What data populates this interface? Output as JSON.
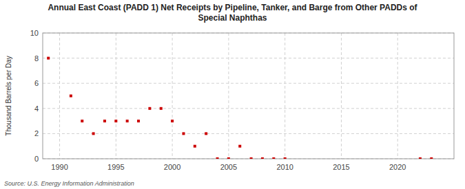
{
  "chart_data": {
    "type": "scatter",
    "title": "Annual East Coast (PADD 1) Net Receipts by Pipeline, Tanker, and Barge from Other PADDs of\nSpecial Naphthas",
    "y_label": "Thousand Barrels per Day",
    "annotations": [
      "Source: U.S. Energy Information Administration"
    ],
    "x": [
      1989,
      1991,
      1992,
      1993,
      1994,
      1995,
      1996,
      1997,
      1998,
      1999,
      2000,
      2001,
      2002,
      2003,
      2004,
      2005,
      2006,
      2007,
      2008,
      2009,
      2010,
      2022,
      2023
    ],
    "values": [
      8.0,
      5.0,
      3.0,
      2.0,
      3.0,
      3.0,
      3.0,
      3.0,
      4.0,
      4.0,
      3.0,
      2.0,
      1.0,
      2.0,
      0.0,
      0.0,
      1.0,
      0.0,
      0.0,
      0.0,
      0.0,
      0.0,
      0.0
    ],
    "color": "#cc0000",
    "marker": "square",
    "xlim": [
      1988.5,
      2025
    ],
    "ylim": [
      0,
      10
    ],
    "xticks": [
      1990,
      1995,
      2000,
      2005,
      2010,
      2015,
      2020
    ],
    "yticks": [
      0,
      2,
      4,
      6,
      8,
      10
    ],
    "grid": true
  }
}
